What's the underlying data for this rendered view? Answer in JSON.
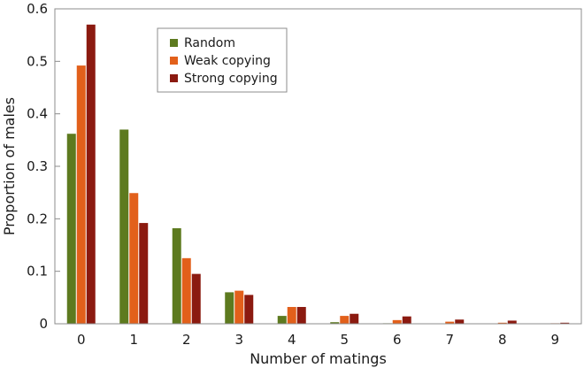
{
  "chart_data": {
    "type": "bar",
    "title": "",
    "xlabel": "Number of matings",
    "ylabel": "Proportion of males",
    "categories": [
      "0",
      "1",
      "2",
      "3",
      "4",
      "5",
      "6",
      "7",
      "8",
      "9"
    ],
    "ylim": [
      0,
      0.6
    ],
    "yticks": [
      "0",
      "0.1",
      "0.2",
      "0.3",
      "0.4",
      "0.5",
      "0.6"
    ],
    "yticks_values": [
      0,
      0.1,
      0.2,
      0.3,
      0.4,
      0.5,
      0.6
    ],
    "grid": false,
    "legend_position": "top-center",
    "series": [
      {
        "name": "Random",
        "color": "#5d7a1f",
        "values": [
          0.362,
          0.37,
          0.182,
          0.06,
          0.015,
          0.003,
          0.001,
          0.0005,
          0.0003,
          0.0002
        ]
      },
      {
        "name": "Weak copying",
        "color": "#e2601b",
        "values": [
          0.492,
          0.249,
          0.125,
          0.063,
          0.032,
          0.015,
          0.007,
          0.004,
          0.002,
          0.001
        ]
      },
      {
        "name": "Strong copying",
        "color": "#8b1a10",
        "values": [
          0.57,
          0.192,
          0.095,
          0.055,
          0.032,
          0.019,
          0.014,
          0.008,
          0.006,
          0.002
        ]
      }
    ]
  }
}
